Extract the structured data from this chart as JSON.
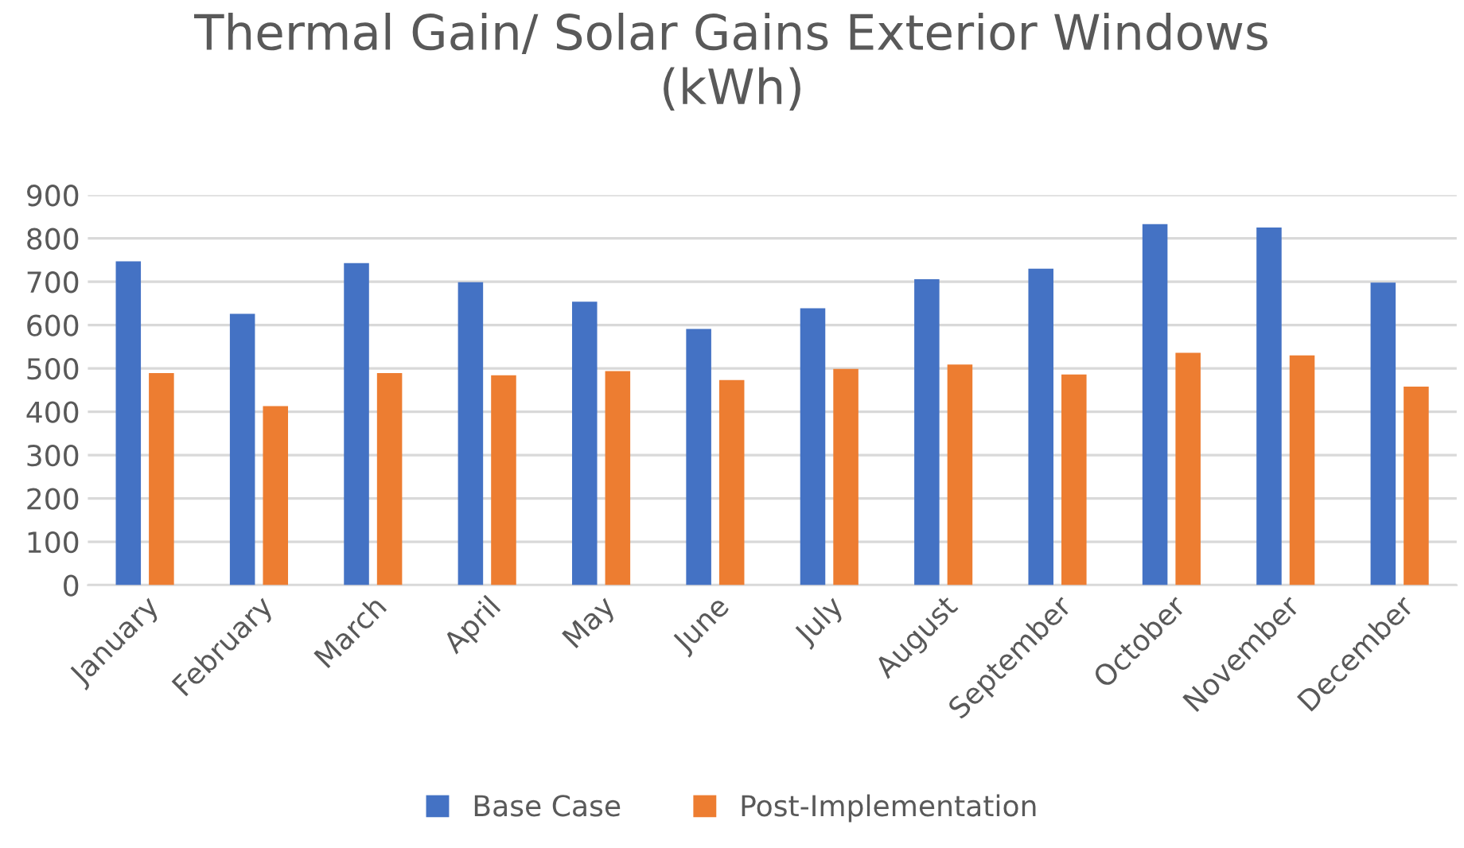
{
  "chart_data": {
    "type": "bar",
    "title": "Thermal Gain/ Solar Gains Exterior Windows\n(kWh)",
    "categories": [
      "January",
      "February",
      "March",
      "April",
      "May",
      "June",
      "July",
      "August",
      "September",
      "October",
      "November",
      "December"
    ],
    "series": [
      {
        "name": "Base Case",
        "color": "#4472c4",
        "values": [
          747,
          626,
          743,
          699,
          654,
          591,
          639,
          706,
          730,
          833,
          825,
          698
        ]
      },
      {
        "name": "Post-Implementation",
        "color": "#ed7d31",
        "values": [
          489,
          413,
          489,
          484,
          494,
          473,
          499,
          509,
          486,
          536,
          530,
          458
        ]
      }
    ],
    "ylim": [
      0,
      900
    ],
    "yticks": [
      0,
      100,
      200,
      300,
      400,
      500,
      600,
      700,
      800,
      900
    ],
    "grid": "y",
    "legend": "bottom"
  }
}
